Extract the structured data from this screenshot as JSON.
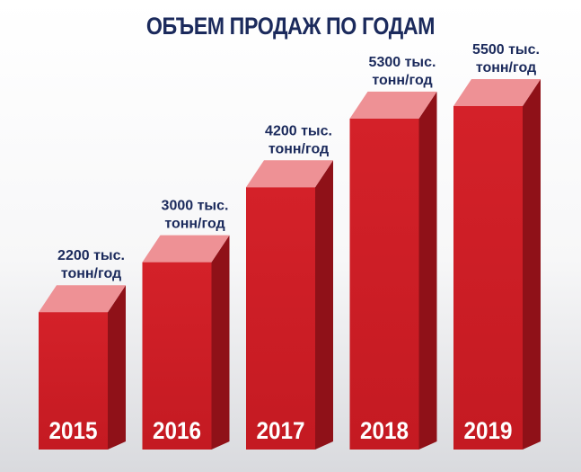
{
  "title": "ОБЪЕМ ПРОДАЖ ПО ГОДАМ",
  "colors": {
    "front": "#d42129",
    "side": "#8f1118",
    "top": "#ee9195",
    "title": "#1b2a5c",
    "label": "#1b2a5c"
  },
  "chart_data": {
    "type": "bar",
    "title": "ОБЪЕМ ПРОДАЖ ПО ГОДАМ",
    "categories": [
      "2015",
      "2016",
      "2017",
      "2018",
      "2019"
    ],
    "values": [
      2200,
      3000,
      4200,
      5300,
      5500
    ],
    "value_labels": [
      [
        "2200 тыс.",
        "тонн/год"
      ],
      [
        "3000 тыс.",
        "тонн/год"
      ],
      [
        "4200 тыс.",
        "тонн/год"
      ],
      [
        "5300 тыс.",
        "тонн/год"
      ],
      [
        "5500 тыс.",
        "тонн/год"
      ]
    ],
    "xlabel": "",
    "ylabel": "",
    "grid": false,
    "legend": "none"
  }
}
